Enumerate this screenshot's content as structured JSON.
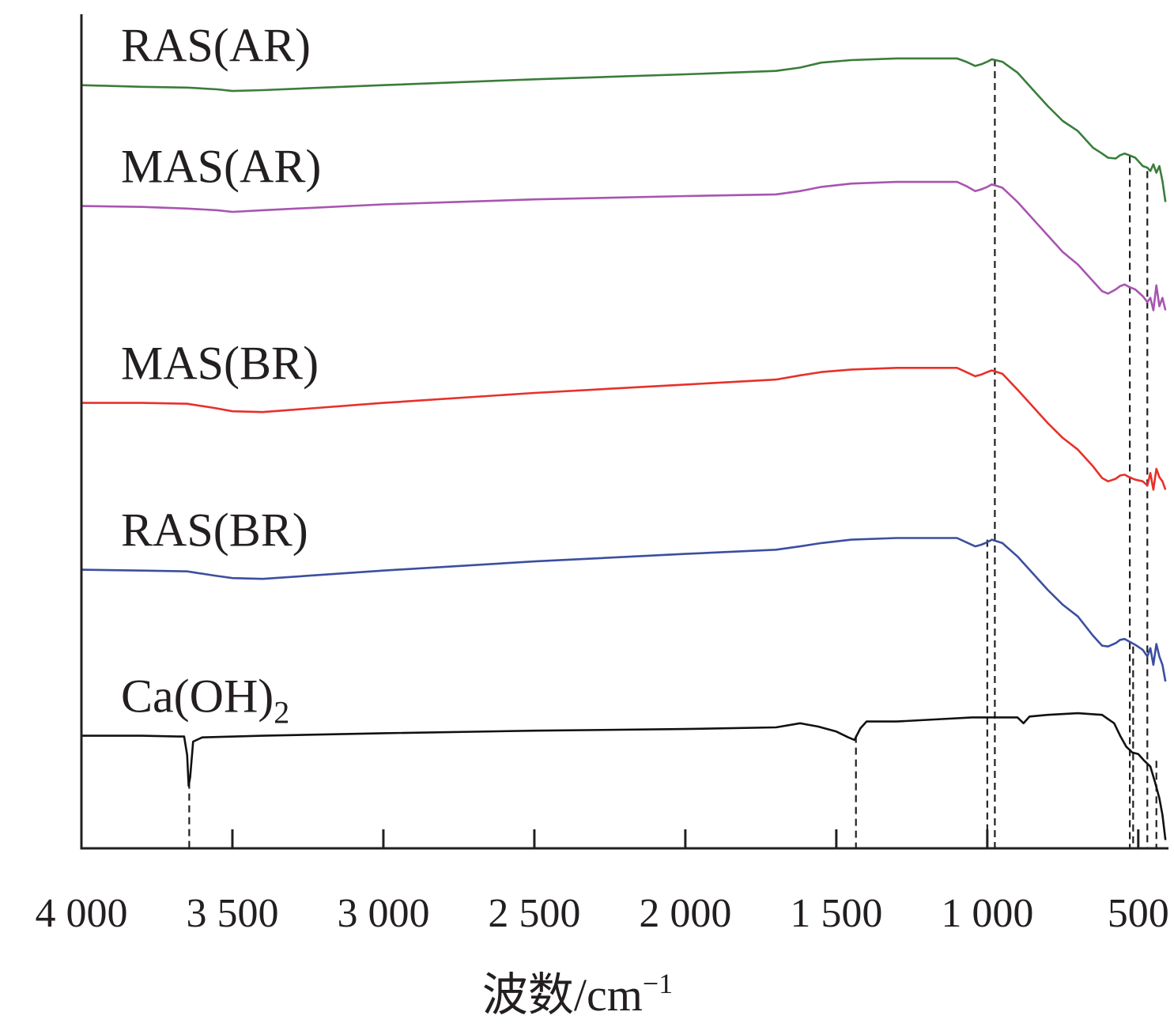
{
  "chart_data": {
    "type": "line",
    "title": "",
    "xlabel": "波数/cm",
    "xlabel_superscript": "−1",
    "ylabel": "",
    "xlim": [
      4000,
      400
    ],
    "ylim": [
      0,
      10
    ],
    "x_ticks": [
      4000,
      3500,
      3000,
      2500,
      2000,
      1500,
      1000,
      500
    ],
    "x_tick_labels": [
      "4 000",
      "3 500",
      "3 000",
      "2 500",
      "2 000",
      "1 500",
      "1 000",
      "500"
    ],
    "grid": false,
    "legend": "none; series labelled inline above each trace",
    "series": [
      {
        "name": "RAS(AR)",
        "label_main": "RAS(AR)",
        "label_sub": "",
        "color": "#3a7d3a",
        "x": [
          4000,
          3800,
          3650,
          3550,
          3500,
          3400,
          3000,
          2500,
          2000,
          1700,
          1620,
          1550,
          1450,
          1300,
          1100,
          1070,
          1040,
          1020,
          1000,
          985,
          950,
          900,
          850,
          800,
          750,
          700,
          650,
          620,
          600,
          575,
          560,
          545,
          530,
          510,
          485,
          470,
          460,
          450,
          440,
          430,
          420,
          410
        ],
        "y": [
          9.15,
          9.13,
          9.12,
          9.1,
          9.08,
          9.09,
          9.15,
          9.22,
          9.28,
          9.32,
          9.36,
          9.42,
          9.45,
          9.47,
          9.47,
          9.43,
          9.38,
          9.4,
          9.43,
          9.46,
          9.43,
          9.3,
          9.1,
          8.9,
          8.72,
          8.6,
          8.4,
          8.33,
          8.28,
          8.27,
          8.31,
          8.33,
          8.31,
          8.28,
          8.18,
          8.16,
          8.12,
          8.2,
          8.1,
          8.18,
          8.0,
          7.75
        ]
      },
      {
        "name": "MAS(AR)",
        "label_main": "MAS(AR)",
        "label_sub": "",
        "color": "#a855b0",
        "x": [
          4000,
          3800,
          3650,
          3550,
          3500,
          3400,
          3000,
          2500,
          2000,
          1700,
          1620,
          1550,
          1450,
          1300,
          1100,
          1070,
          1040,
          1020,
          1000,
          985,
          950,
          900,
          850,
          800,
          750,
          700,
          650,
          620,
          600,
          575,
          560,
          545,
          530,
          510,
          485,
          470,
          460,
          450,
          440,
          430,
          420,
          410
        ],
        "y": [
          7.7,
          7.69,
          7.67,
          7.65,
          7.63,
          7.65,
          7.72,
          7.78,
          7.82,
          7.84,
          7.88,
          7.93,
          7.97,
          7.99,
          7.99,
          7.94,
          7.88,
          7.9,
          7.93,
          7.96,
          7.92,
          7.75,
          7.55,
          7.35,
          7.15,
          7.0,
          6.8,
          6.68,
          6.65,
          6.7,
          6.74,
          6.76,
          6.73,
          6.7,
          6.62,
          6.55,
          6.6,
          6.45,
          6.75,
          6.5,
          6.6,
          6.45
        ]
      },
      {
        "name": "MAS(BR)",
        "label_main": "MAS(BR)",
        "label_sub": "",
        "color": "#e8302a",
        "x": [
          4000,
          3800,
          3650,
          3560,
          3500,
          3400,
          3000,
          2500,
          2000,
          1700,
          1620,
          1550,
          1450,
          1300,
          1100,
          1070,
          1040,
          1020,
          1000,
          985,
          950,
          900,
          850,
          800,
          750,
          700,
          650,
          620,
          600,
          575,
          560,
          545,
          530,
          510,
          485,
          470,
          460,
          450,
          440,
          430,
          420,
          410
        ],
        "y": [
          5.34,
          5.34,
          5.33,
          5.28,
          5.24,
          5.23,
          5.34,
          5.46,
          5.56,
          5.62,
          5.67,
          5.71,
          5.74,
          5.76,
          5.76,
          5.71,
          5.66,
          5.68,
          5.71,
          5.73,
          5.69,
          5.5,
          5.3,
          5.1,
          4.92,
          4.78,
          4.58,
          4.44,
          4.4,
          4.43,
          4.47,
          4.48,
          4.45,
          4.42,
          4.4,
          4.35,
          4.5,
          4.3,
          4.55,
          4.45,
          4.4,
          4.3
        ]
      },
      {
        "name": "RAS(BR)",
        "label_main": "RAS(BR)",
        "label_sub": "",
        "color": "#3b4fa0",
        "x": [
          4000,
          3800,
          3650,
          3560,
          3500,
          3400,
          3000,
          2500,
          2000,
          1700,
          1620,
          1550,
          1450,
          1300,
          1100,
          1070,
          1040,
          1020,
          1000,
          985,
          950,
          900,
          850,
          800,
          750,
          700,
          650,
          620,
          600,
          575,
          560,
          545,
          530,
          510,
          485,
          470,
          460,
          450,
          440,
          430,
          420,
          410
        ],
        "y": [
          3.34,
          3.33,
          3.32,
          3.27,
          3.24,
          3.23,
          3.33,
          3.44,
          3.53,
          3.58,
          3.62,
          3.66,
          3.7,
          3.72,
          3.72,
          3.67,
          3.62,
          3.64,
          3.67,
          3.7,
          3.66,
          3.5,
          3.3,
          3.1,
          2.92,
          2.78,
          2.55,
          2.43,
          2.42,
          2.46,
          2.5,
          2.51,
          2.48,
          2.44,
          2.38,
          2.3,
          2.4,
          2.2,
          2.45,
          2.3,
          2.2,
          2.0
        ]
      },
      {
        "name": "Ca(OH)2",
        "label_main": "Ca(OH)",
        "label_sub": "2",
        "color": "#111111",
        "x": [
          4000,
          3800,
          3680,
          3660,
          3650,
          3645,
          3640,
          3630,
          3600,
          3400,
          3000,
          2500,
          2000,
          1700,
          1620,
          1560,
          1500,
          1460,
          1440,
          1420,
          1400,
          1300,
          1150,
          1050,
          1000,
          900,
          880,
          860,
          800,
          700,
          620,
          580,
          560,
          540,
          520,
          500,
          480,
          460,
          445,
          430,
          420,
          410
        ],
        "y": [
          1.35,
          1.35,
          1.34,
          1.34,
          1.12,
          0.75,
          0.85,
          1.28,
          1.33,
          1.35,
          1.38,
          1.41,
          1.43,
          1.45,
          1.5,
          1.46,
          1.4,
          1.33,
          1.3,
          1.44,
          1.52,
          1.52,
          1.55,
          1.57,
          1.57,
          1.57,
          1.5,
          1.58,
          1.6,
          1.62,
          1.6,
          1.5,
          1.35,
          1.22,
          1.15,
          1.13,
          1.05,
          0.98,
          0.8,
          0.6,
          0.4,
          0.1
        ]
      }
    ],
    "reference_lines": [
      {
        "x": 3643,
        "y_top": 0.8,
        "y_bottom": 0
      },
      {
        "x": 1435,
        "y_top": 1.35,
        "y_bottom": 0
      },
      {
        "x": 1000,
        "y_top": 3.7,
        "y_bottom": 0
      },
      {
        "x": 975,
        "y_top": 9.46,
        "y_bottom": 0
      },
      {
        "x": 528,
        "y_top": 8.3,
        "y_bottom": 0
      },
      {
        "x": 517,
        "y_top": 2.42,
        "y_bottom": 0
      },
      {
        "x": 470,
        "y_top": 8.12,
        "y_bottom": 0
      },
      {
        "x": 440,
        "y_top": 1.05,
        "y_bottom": 0
      }
    ]
  }
}
